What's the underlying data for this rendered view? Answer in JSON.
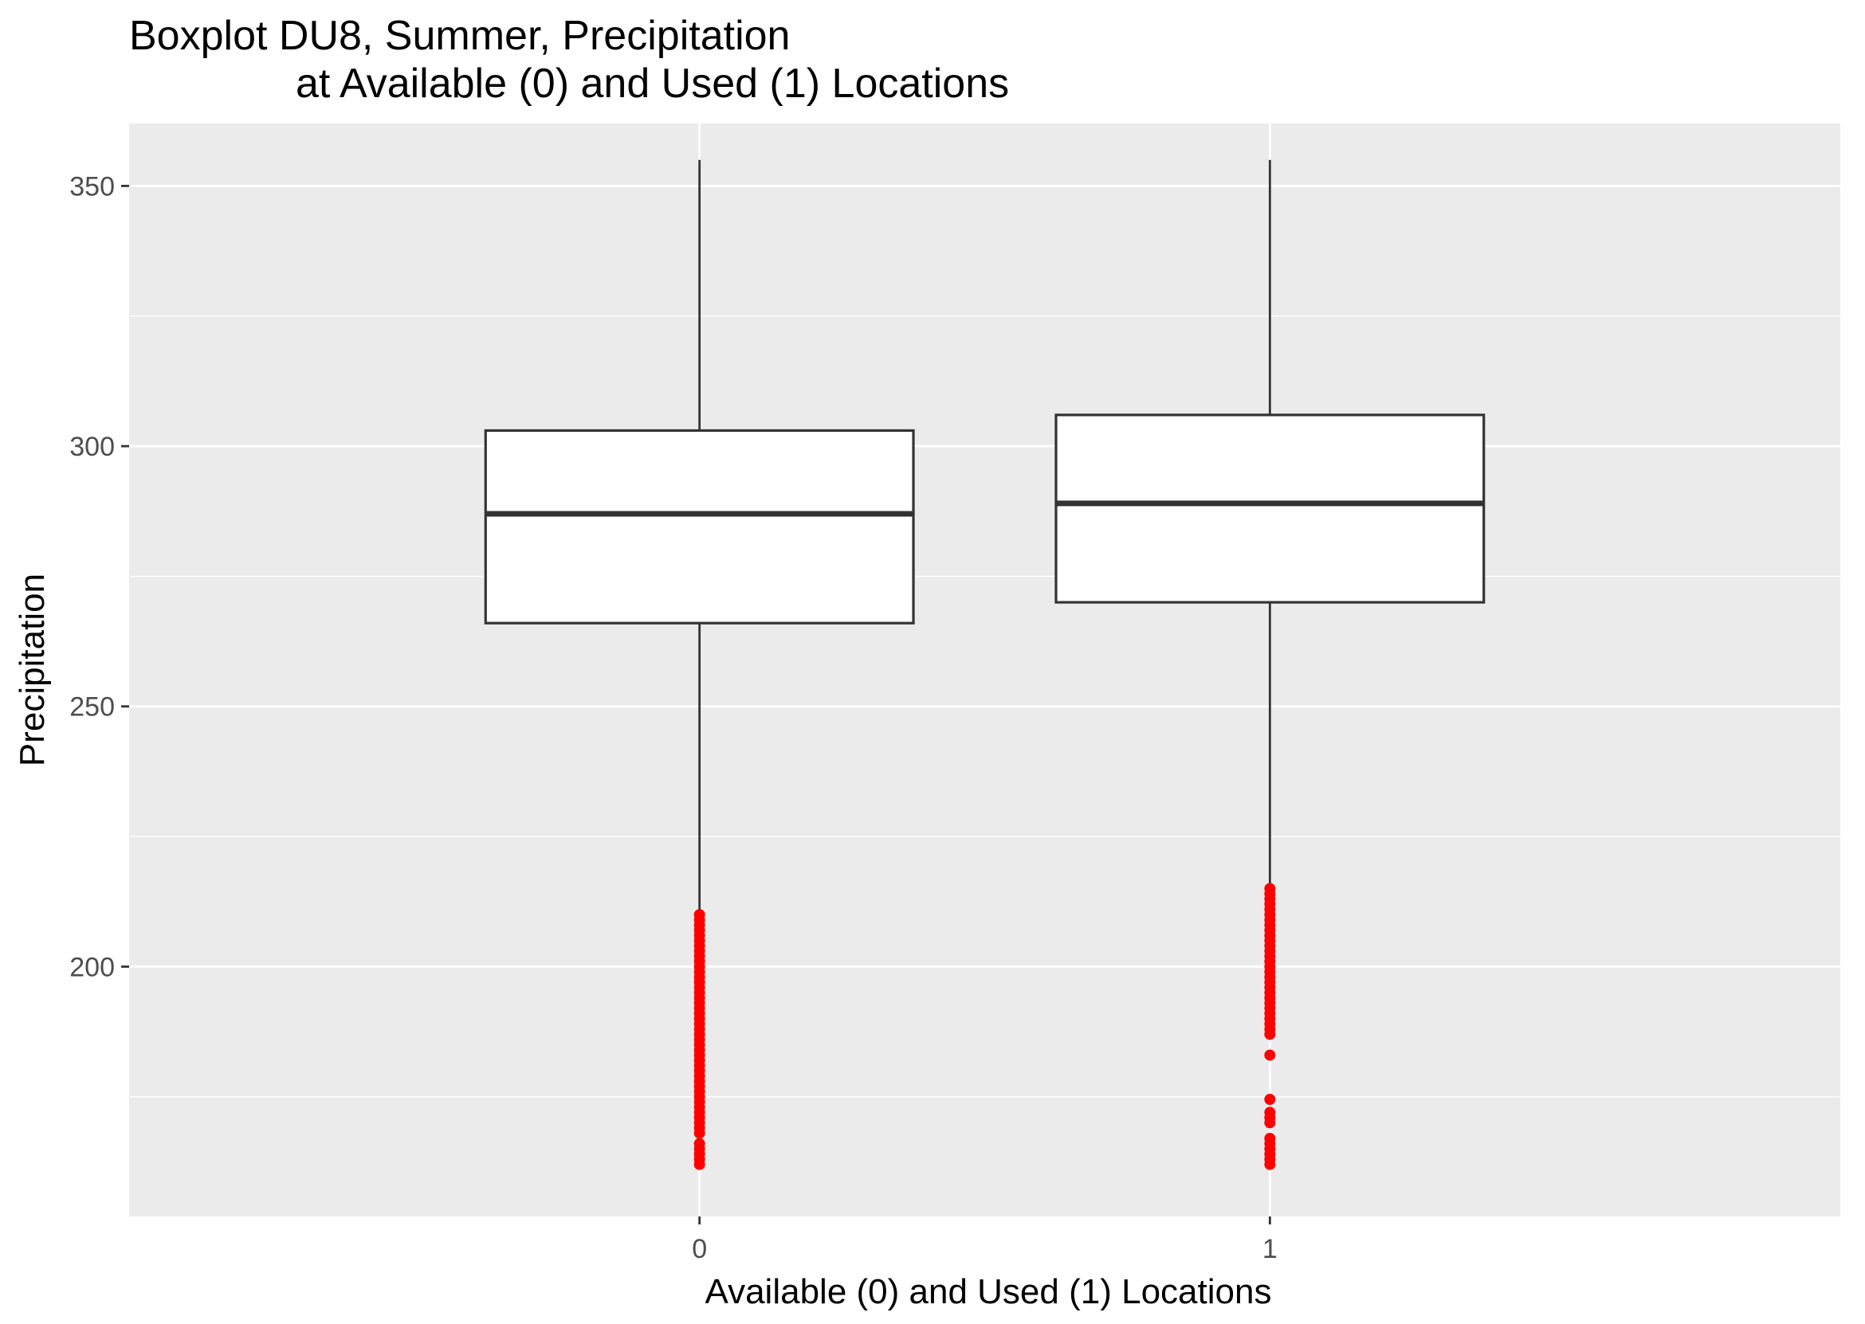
{
  "chart_data": {
    "type": "boxplot",
    "title_lines": [
      "Boxplot DU8, Summer, Precipitation",
      "at Available (0) and Used (1) Locations"
    ],
    "xlabel": "Available (0) and Used (1) Locations",
    "ylabel": "Precipitation",
    "categories": [
      "0",
      "1"
    ],
    "ylim": [
      152,
      362
    ],
    "yticks": [
      200,
      250,
      300,
      350
    ],
    "grid": true,
    "colors": {
      "panel": "#ebebeb",
      "grid": "#ffffff",
      "box_fill": "#ffffff",
      "box_line": "#333333",
      "outlier": "#ff0000"
    },
    "boxes": [
      {
        "category": "0",
        "whisker_low": 210,
        "q1": 266,
        "median": 287,
        "q3": 303,
        "whisker_high": 355,
        "outliers": [
          210,
          209,
          208,
          207,
          206,
          205,
          204,
          203,
          202,
          201,
          200,
          199,
          198,
          197,
          196,
          195,
          194,
          193,
          192,
          191,
          190,
          189,
          188,
          187,
          186,
          185,
          184,
          183,
          182,
          181,
          180,
          179,
          178,
          177,
          176,
          175,
          174,
          173,
          172,
          171,
          170,
          169,
          168,
          166,
          165,
          164,
          163,
          162
        ]
      },
      {
        "category": "1",
        "whisker_low": 215,
        "q1": 270,
        "median": 289,
        "q3": 306,
        "whisker_high": 355,
        "outliers": [
          215,
          214,
          213,
          212,
          211,
          210,
          209,
          208,
          207,
          206,
          205,
          204,
          203,
          202,
          201,
          200,
          199,
          198,
          197,
          196,
          195,
          194,
          193,
          192,
          191,
          190,
          189,
          188,
          187,
          183,
          174.5,
          172,
          171,
          170,
          167,
          166,
          165,
          164,
          163,
          162
        ]
      }
    ]
  }
}
